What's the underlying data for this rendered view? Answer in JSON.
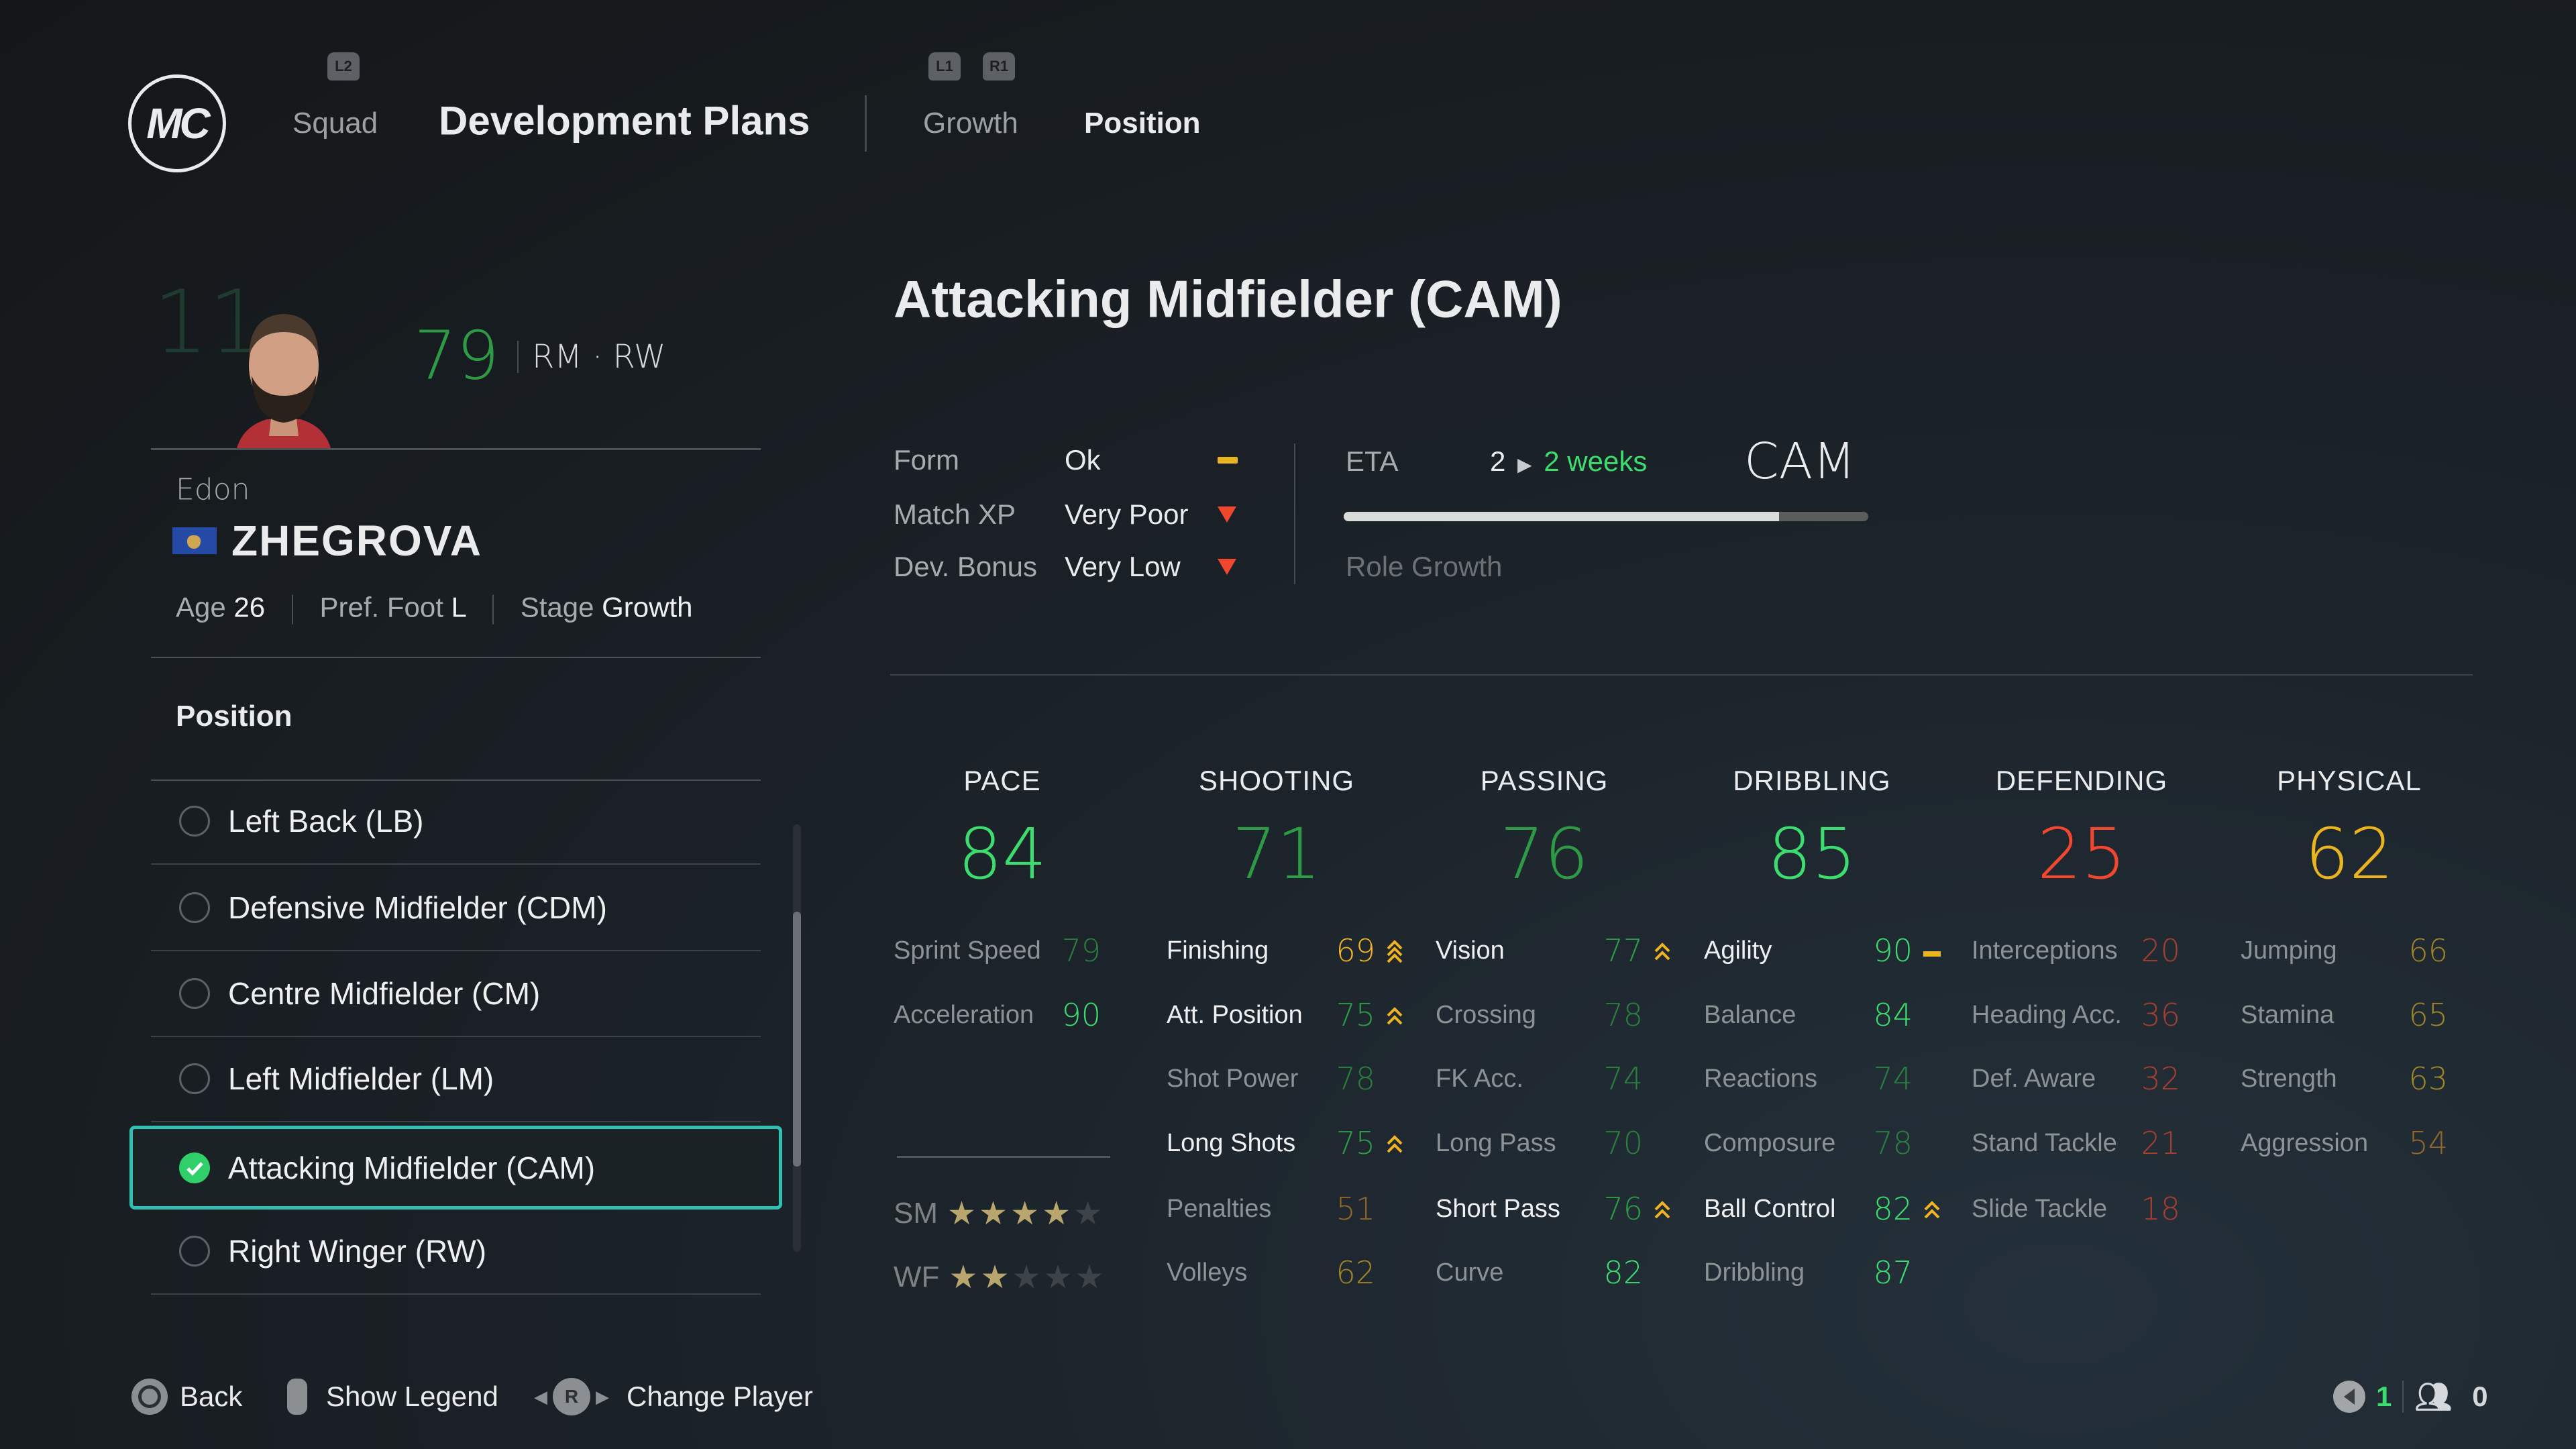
{
  "header": {
    "logo_text": "MC",
    "squad_hint": "L2",
    "squad": "Squad",
    "title": "Development Plans",
    "tab_hint_left": "L1",
    "tab_hint_right": "R1",
    "tabs": [
      {
        "label": "Growth",
        "active": false
      },
      {
        "label": "Position",
        "active": true
      }
    ]
  },
  "player": {
    "number": "11",
    "rating": "79",
    "positions": "RM · RW",
    "first_name": "Edon",
    "last_name": "ZHEGROVA",
    "nation": "Kosovo",
    "age_label": "Age",
    "age": "26",
    "foot_label": "Pref. Foot",
    "foot": "L",
    "stage_label": "Stage",
    "stage": "Growth"
  },
  "position_panel": {
    "heading": "Position",
    "items": [
      {
        "label": "Left Back (LB)",
        "selected": false
      },
      {
        "label": "Defensive Midfielder (CDM)",
        "selected": false
      },
      {
        "label": "Centre Midfielder (CM)",
        "selected": false
      },
      {
        "label": "Left Midfielder (LM)",
        "selected": false
      },
      {
        "label": "Attacking Midfielder (CAM)",
        "selected": true
      },
      {
        "label": "Right Winger (RW)",
        "selected": false
      }
    ]
  },
  "detail": {
    "title": "Attacking Midfielder (CAM)",
    "info": [
      {
        "label": "Form",
        "value": "Ok",
        "indicator": "dash"
      },
      {
        "label": "Match XP",
        "value": "Very Poor",
        "indicator": "down"
      },
      {
        "label": "Dev. Bonus",
        "value": "Very Low",
        "indicator": "down"
      }
    ],
    "eta_label": "ETA",
    "eta_from": "2",
    "eta_to": "2 weeks",
    "target": "CAM",
    "progress_percent": 83,
    "role_growth": "Role Growth"
  },
  "categories": [
    {
      "name": "PACE",
      "value": "84",
      "color": "#3ddc6e",
      "stats": [
        {
          "label": "Sprint Speed",
          "value": "79"
        },
        {
          "label": "Acceleration",
          "value": "90"
        }
      ]
    },
    {
      "name": "SHOOTING",
      "value": "71",
      "color": "#2e9a45",
      "stats": [
        {
          "label": "Finishing",
          "value": "69",
          "key": true,
          "arrow": "double-up"
        },
        {
          "label": "Att. Position",
          "value": "75",
          "key": true,
          "arrow": "up"
        },
        {
          "label": "Shot Power",
          "value": "78"
        },
        {
          "label": "Long Shots",
          "value": "75",
          "key": true,
          "arrow": "up"
        },
        {
          "label": "Penalties",
          "value": "51"
        },
        {
          "label": "Volleys",
          "value": "62"
        }
      ]
    },
    {
      "name": "PASSING",
      "value": "76",
      "color": "#2e9a45",
      "stats": [
        {
          "label": "Vision",
          "value": "77",
          "key": true,
          "arrow": "up"
        },
        {
          "label": "Crossing",
          "value": "78"
        },
        {
          "label": "FK Acc.",
          "value": "74"
        },
        {
          "label": "Long Pass",
          "value": "70"
        },
        {
          "label": "Short Pass",
          "value": "76",
          "key": true,
          "arrow": "up"
        },
        {
          "label": "Curve",
          "value": "82"
        }
      ]
    },
    {
      "name": "DRIBBLING",
      "value": "85",
      "color": "#3ddc6e",
      "stats": [
        {
          "label": "Agility",
          "value": "90",
          "key": true,
          "arrow": "dash"
        },
        {
          "label": "Balance",
          "value": "84"
        },
        {
          "label": "Reactions",
          "value": "74"
        },
        {
          "label": "Composure",
          "value": "78"
        },
        {
          "label": "Ball Control",
          "value": "82",
          "key": true,
          "arrow": "up"
        },
        {
          "label": "Dribbling",
          "value": "87"
        }
      ]
    },
    {
      "name": "DEFENDING",
      "value": "25",
      "color": "#f0472e",
      "stats": [
        {
          "label": "Interceptions",
          "value": "20"
        },
        {
          "label": "Heading Acc.",
          "value": "36"
        },
        {
          "label": "Def. Aware",
          "value": "32"
        },
        {
          "label": "Stand Tackle",
          "value": "21"
        },
        {
          "label": "Slide Tackle",
          "value": "18"
        }
      ]
    },
    {
      "name": "PHYSICAL",
      "value": "62",
      "color": "#eab320",
      "stats": [
        {
          "label": "Jumping",
          "value": "66"
        },
        {
          "label": "Stamina",
          "value": "65"
        },
        {
          "label": "Strength",
          "value": "63"
        },
        {
          "label": "Aggression",
          "value": "54"
        }
      ]
    }
  ],
  "skills": [
    {
      "label": "SM",
      "stars": 4
    },
    {
      "label": "WF",
      "stars": 2
    }
  ],
  "footer": {
    "back": "Back",
    "legend": "Show Legend",
    "change_player": "Change Player",
    "change_hint": "R",
    "notifications": "1",
    "friends": "0"
  },
  "colors": {
    "accent": "#2fc0b3",
    "green": "#3ddc6e",
    "dark_green": "#2e9a45",
    "gold": "#eab320",
    "red": "#f0472e"
  }
}
